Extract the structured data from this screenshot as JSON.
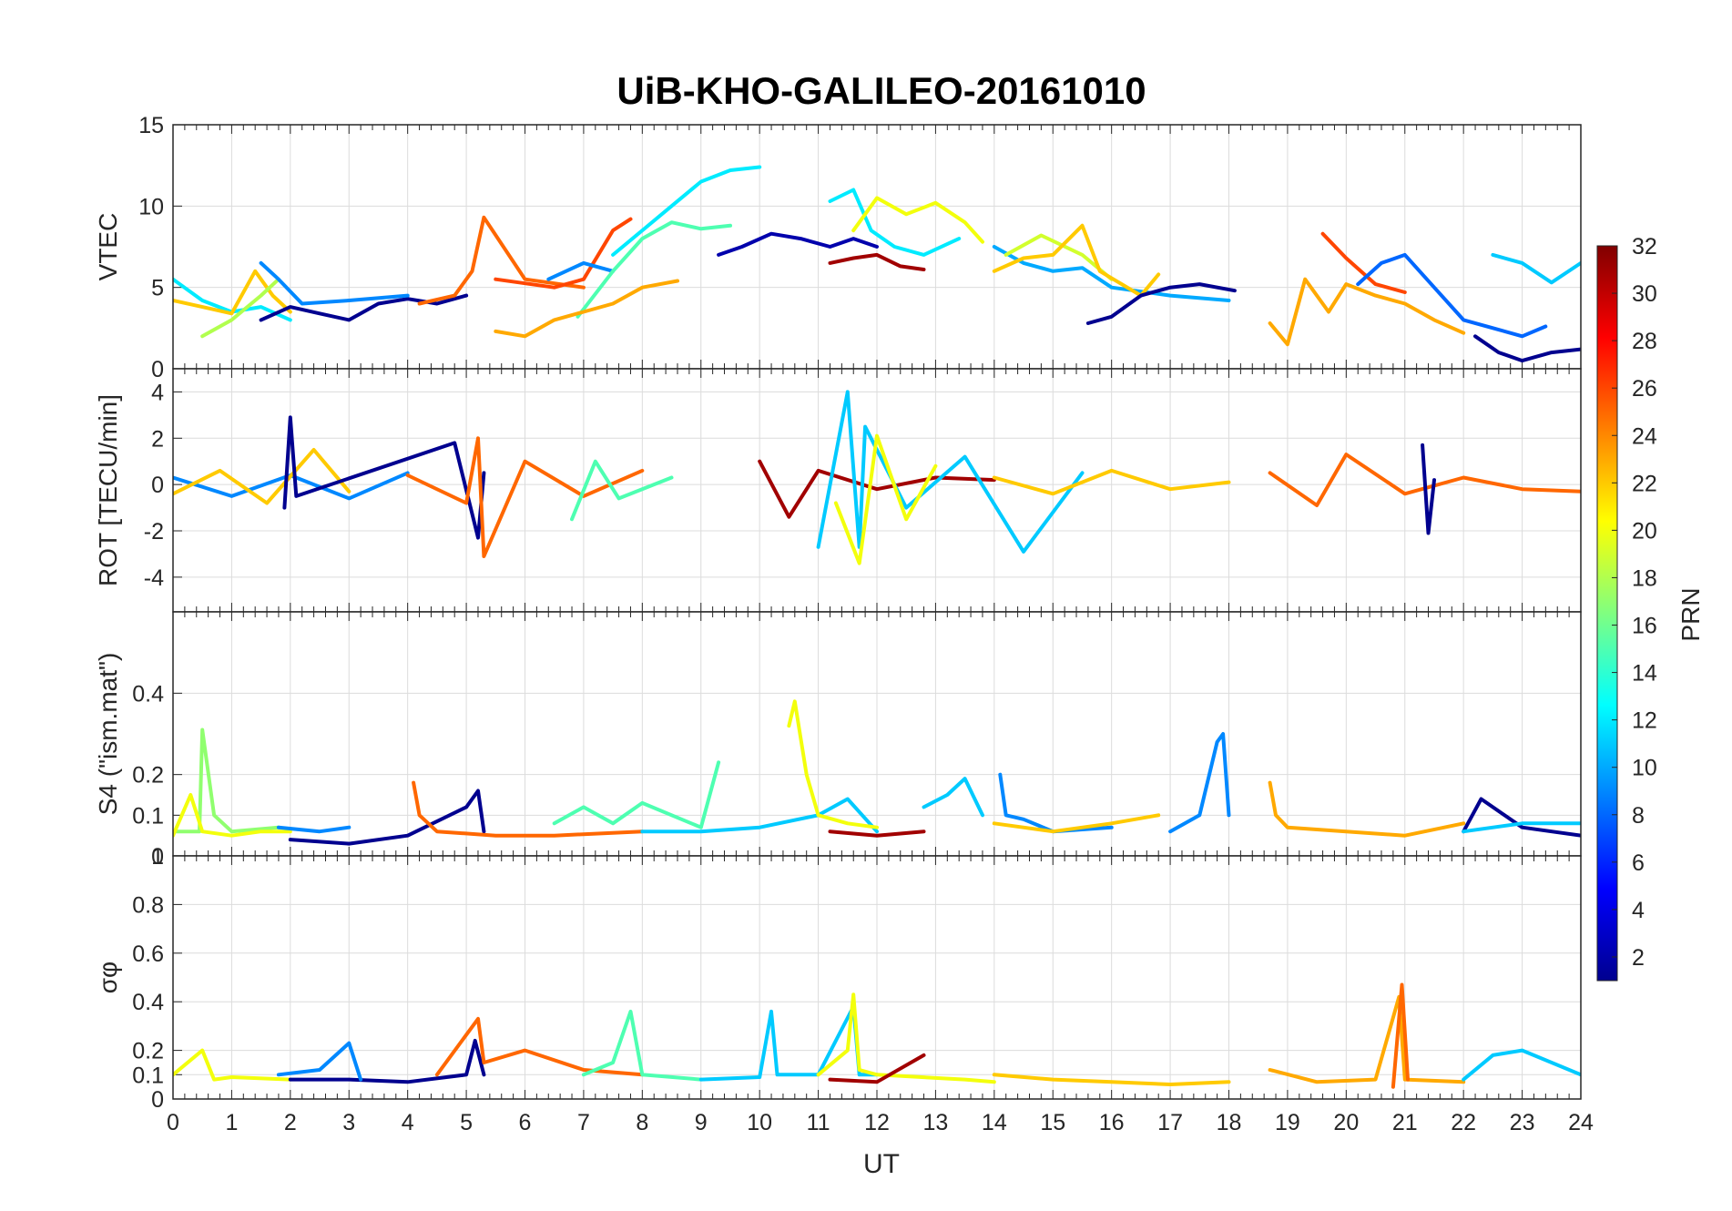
{
  "figure": {
    "title": "UiB-KHO-GALILEO-20161010",
    "xlabel": "UT"
  },
  "colorbar": {
    "label": "PRN",
    "min": 1,
    "max": 32,
    "ticks": [
      "2",
      "4",
      "6",
      "8",
      "10",
      "12",
      "14",
      "16",
      "18",
      "20",
      "22",
      "24",
      "26",
      "28",
      "30",
      "32"
    ],
    "colormap": "jet",
    "colors": [
      "#00008f",
      "#0000ff",
      "#0080ff",
      "#00ffff",
      "#80ff80",
      "#ffff00",
      "#ff8000",
      "#ff0000",
      "#800000"
    ]
  },
  "chart_data": [
    {
      "type": "line",
      "ylabel": "VTEC",
      "xlim": [
        0,
        24
      ],
      "ylim": [
        0,
        15
      ],
      "yticks": [
        "0",
        "5",
        "10",
        "15"
      ],
      "grid": true,
      "series": [
        {
          "prn": 12,
          "x": [
            0,
            0.5,
            1,
            1.5,
            2
          ],
          "y": [
            5.5,
            4.2,
            3.5,
            3.8,
            3.0
          ]
        },
        {
          "prn": 22,
          "x": [
            0,
            0.5,
            1,
            1.4,
            1.7,
            2
          ],
          "y": [
            4.2,
            3.8,
            3.4,
            6.0,
            4.5,
            3.5
          ]
        },
        {
          "prn": 18,
          "x": [
            0.5,
            1,
            1.5,
            1.8
          ],
          "y": [
            2.0,
            3.0,
            4.5,
            5.5
          ]
        },
        {
          "prn": 1,
          "x": [
            1.5,
            2,
            2.5,
            3,
            3.5,
            4,
            4.5,
            5
          ],
          "y": [
            3.0,
            3.8,
            3.4,
            3.0,
            4.0,
            4.3,
            4.0,
            4.5
          ]
        },
        {
          "prn": 9,
          "x": [
            1.5,
            1.8,
            2.2,
            3,
            4
          ],
          "y": [
            6.5,
            5.5,
            4.0,
            4.2,
            4.5
          ]
        },
        {
          "prn": 25,
          "x": [
            4.2,
            4.8,
            5.1,
            5.3,
            6,
            7
          ],
          "y": [
            4.0,
            4.5,
            6.0,
            9.3,
            5.5,
            5.0
          ]
        },
        {
          "prn": 26,
          "x": [
            5.5,
            6.5,
            7,
            7.5,
            7.8
          ],
          "y": [
            5.5,
            5.0,
            5.5,
            8.5,
            9.2
          ]
        },
        {
          "prn": 9,
          "x": [
            6.4,
            7,
            7.5
          ],
          "y": [
            5.5,
            6.5,
            6.0
          ]
        },
        {
          "prn": 15,
          "x": [
            6.9,
            7.5,
            8,
            8.5,
            9,
            9.5
          ],
          "y": [
            3.2,
            6.0,
            8.0,
            9.0,
            8.6,
            8.8
          ]
        },
        {
          "prn": 23,
          "x": [
            5.5,
            6,
            6.5,
            7,
            7.5,
            8,
            8.6
          ],
          "y": [
            2.3,
            2.0,
            3.0,
            3.5,
            4.0,
            5.0,
            5.4
          ]
        },
        {
          "prn": 12,
          "x": [
            7.5,
            8,
            8.5,
            9,
            9.5,
            10
          ],
          "y": [
            7.0,
            8.5,
            10.0,
            11.5,
            12.2,
            12.4
          ]
        },
        {
          "prn": 2,
          "x": [
            9.3,
            9.7,
            10.2,
            10.7,
            11.2,
            11.6,
            12
          ],
          "y": [
            7.0,
            7.5,
            8.3,
            8.0,
            7.5,
            8.0,
            7.5
          ]
        },
        {
          "prn": 31,
          "x": [
            11.2,
            11.6,
            12,
            12.4,
            12.8
          ],
          "y": [
            6.5,
            6.8,
            7.0,
            6.3,
            6.1
          ]
        },
        {
          "prn": 12,
          "x": [
            11.2,
            11.6,
            11.9,
            12.3,
            12.8,
            13.4
          ],
          "y": [
            10.3,
            11.0,
            8.5,
            7.5,
            7.0,
            8.0
          ]
        },
        {
          "prn": 20,
          "x": [
            11.6,
            12,
            12.5,
            13,
            13.5,
            13.8
          ],
          "y": [
            8.5,
            10.5,
            9.5,
            10.2,
            9.0,
            7.8
          ]
        },
        {
          "prn": 10,
          "x": [
            14,
            14.5,
            15,
            15.5,
            16,
            17,
            18
          ],
          "y": [
            7.5,
            6.5,
            6.0,
            6.2,
            5.0,
            4.5,
            4.2
          ]
        },
        {
          "prn": 19,
          "x": [
            14.2,
            14.8,
            15.5,
            16
          ],
          "y": [
            7.0,
            8.2,
            7.0,
            5.5
          ]
        },
        {
          "prn": 22,
          "x": [
            14,
            14.5,
            15,
            15.5,
            15.8,
            16.5,
            16.8
          ],
          "y": [
            6.0,
            6.8,
            7.0,
            8.8,
            6.0,
            4.5,
            5.8
          ]
        },
        {
          "prn": 1,
          "x": [
            15.6,
            16,
            16.5,
            17,
            17.5,
            18.1
          ],
          "y": [
            2.8,
            3.2,
            4.5,
            5.0,
            5.2,
            4.8
          ]
        },
        {
          "prn": 23,
          "x": [
            18.7,
            19,
            19.3,
            19.7,
            20,
            20.5,
            21,
            21.5,
            22
          ],
          "y": [
            2.8,
            1.5,
            5.5,
            3.5,
            5.2,
            4.5,
            4.0,
            3.0,
            2.2
          ]
        },
        {
          "prn": 26,
          "x": [
            19.6,
            20,
            20.5,
            21
          ],
          "y": [
            8.3,
            6.8,
            5.2,
            4.7
          ]
        },
        {
          "prn": 8,
          "x": [
            20.2,
            20.6,
            21,
            21.5,
            22,
            22.5,
            23,
            23.4
          ],
          "y": [
            5.2,
            6.5,
            7.0,
            5.0,
            3.0,
            2.5,
            2.0,
            2.6
          ]
        },
        {
          "prn": 1,
          "x": [
            22.2,
            22.6,
            23,
            23.5,
            24
          ],
          "y": [
            2.0,
            1.0,
            0.5,
            1.0,
            1.2
          ]
        },
        {
          "prn": 11,
          "x": [
            22.5,
            23,
            23.5,
            24
          ],
          "y": [
            7.0,
            6.5,
            5.3,
            6.5
          ]
        }
      ]
    },
    {
      "type": "line",
      "ylabel": "ROT [TECU/min]",
      "xlim": [
        0,
        24
      ],
      "ylim": [
        -5.5,
        5
      ],
      "yticks": [
        "-4",
        "-2",
        "0",
        "2",
        "4"
      ],
      "grid": true,
      "series": [
        {
          "prn": 9,
          "x": [
            0,
            1,
            2,
            3,
            4
          ],
          "y": [
            0.3,
            -0.5,
            0.4,
            -0.6,
            0.5
          ]
        },
        {
          "prn": 22,
          "x": [
            0,
            0.8,
            1.6,
            2.4,
            3
          ],
          "y": [
            -0.4,
            0.6,
            -0.8,
            1.5,
            -0.3
          ]
        },
        {
          "prn": 1,
          "x": [
            1.9,
            2,
            2.1,
            4.8,
            5.2,
            5.3
          ],
          "y": [
            -1.0,
            2.9,
            -0.5,
            1.8,
            -2.3,
            0.5
          ]
        },
        {
          "prn": 25,
          "x": [
            4,
            5,
            5.2,
            5.3,
            6,
            7,
            8
          ],
          "y": [
            0.4,
            -0.8,
            2.0,
            -3.1,
            1.0,
            -0.5,
            0.6
          ]
        },
        {
          "prn": 15,
          "x": [
            6.8,
            7.2,
            7.6,
            8.5
          ],
          "y": [
            -1.5,
            1.0,
            -0.6,
            0.3
          ]
        },
        {
          "prn": 31,
          "x": [
            10,
            10.5,
            11,
            12,
            13,
            14
          ],
          "y": [
            1.0,
            -1.4,
            0.6,
            -0.2,
            0.3,
            0.2
          ]
        },
        {
          "prn": 11,
          "x": [
            11,
            11.5,
            11.7,
            11.8,
            12.5,
            13.5,
            14.5,
            15.5
          ],
          "y": [
            -2.7,
            4.0,
            -2.7,
            2.5,
            -1.0,
            1.2,
            -2.9,
            0.5
          ]
        },
        {
          "prn": 20,
          "x": [
            11.3,
            11.7,
            12,
            12.5,
            13
          ],
          "y": [
            -0.8,
            -3.4,
            2.1,
            -1.5,
            0.8
          ]
        },
        {
          "prn": 22,
          "x": [
            14,
            15,
            16,
            17,
            18
          ],
          "y": [
            0.3,
            -0.4,
            0.6,
            -0.2,
            0.1
          ]
        },
        {
          "prn": 25,
          "x": [
            18.7,
            19.5,
            20,
            21,
            22,
            23,
            24
          ],
          "y": [
            0.5,
            -0.9,
            1.3,
            -0.4,
            0.3,
            -0.2,
            -0.3
          ]
        },
        {
          "prn": 1,
          "x": [
            21.3,
            21.4,
            21.5
          ],
          "y": [
            1.7,
            -2.1,
            0.2
          ]
        }
      ]
    },
    {
      "type": "line",
      "ylabel": "S4 (\"ism.mat\")",
      "xlim": [
        0,
        24
      ],
      "ylim": [
        0,
        0.6
      ],
      "yticks": [
        "0",
        "0.1",
        "0.2",
        "0.4"
      ],
      "grid": true,
      "series": [
        {
          "prn": 17,
          "x": [
            0,
            0.45,
            0.5,
            0.7,
            1,
            1.8
          ],
          "y": [
            0.06,
            0.06,
            0.31,
            0.1,
            0.06,
            0.07
          ]
        },
        {
          "prn": 20,
          "x": [
            0,
            0.3,
            0.5,
            1,
            1.5,
            2
          ],
          "y": [
            0.05,
            0.15,
            0.06,
            0.05,
            0.06,
            0.06
          ]
        },
        {
          "prn": 9,
          "x": [
            1.8,
            2.5,
            3
          ],
          "y": [
            0.07,
            0.06,
            0.07
          ]
        },
        {
          "prn": 1,
          "x": [
            2,
            3,
            4,
            5,
            5.2,
            5.3
          ],
          "y": [
            0.04,
            0.03,
            0.05,
            0.12,
            0.16,
            0.06
          ]
        },
        {
          "prn": 25,
          "x": [
            4.1,
            4.2,
            4.5,
            5.5,
            6.5,
            8
          ],
          "y": [
            0.18,
            0.1,
            0.06,
            0.05,
            0.05,
            0.06
          ]
        },
        {
          "prn": 15,
          "x": [
            6.5,
            7,
            7.5,
            8,
            9,
            9.3
          ],
          "y": [
            0.08,
            0.12,
            0.08,
            0.13,
            0.07,
            0.23
          ]
        },
        {
          "prn": 11,
          "x": [
            8,
            9,
            10,
            11,
            11.5,
            12
          ],
          "y": [
            0.06,
            0.06,
            0.07,
            0.1,
            0.14,
            0.06
          ]
        },
        {
          "prn": 20,
          "x": [
            10.5,
            10.6,
            10.8,
            11,
            11.5,
            12
          ],
          "y": [
            0.32,
            0.38,
            0.2,
            0.1,
            0.08,
            0.07
          ]
        },
        {
          "prn": 31,
          "x": [
            11.2,
            12,
            12.8
          ],
          "y": [
            0.06,
            0.05,
            0.06
          ]
        },
        {
          "prn": 11,
          "x": [
            12.8,
            13.2,
            13.5,
            13.8
          ],
          "y": [
            0.12,
            0.15,
            0.19,
            0.1
          ]
        },
        {
          "prn": 9,
          "x": [
            14.1,
            14.2,
            14.5,
            15,
            16
          ],
          "y": [
            0.2,
            0.1,
            0.09,
            0.06,
            0.07
          ]
        },
        {
          "prn": 22,
          "x": [
            14,
            15,
            16,
            16.8
          ],
          "y": [
            0.08,
            0.06,
            0.08,
            0.1
          ]
        },
        {
          "prn": 9,
          "x": [
            17,
            17.5,
            17.8,
            17.9,
            18
          ],
          "y": [
            0.06,
            0.1,
            0.28,
            0.3,
            0.1
          ]
        },
        {
          "prn": 23,
          "x": [
            18.7,
            18.8,
            19,
            20,
            21,
            22
          ],
          "y": [
            0.18,
            0.1,
            0.07,
            0.06,
            0.05,
            0.08
          ]
        },
        {
          "prn": 1,
          "x": [
            22,
            22.3,
            23,
            24
          ],
          "y": [
            0.06,
            0.14,
            0.07,
            0.05
          ]
        },
        {
          "prn": 11,
          "x": [
            22,
            23,
            24
          ],
          "y": [
            0.06,
            0.08,
            0.08
          ]
        }
      ]
    },
    {
      "type": "line",
      "ylabel": "σφ",
      "xlim": [
        0,
        24
      ],
      "ylim": [
        0,
        1
      ],
      "yticks": [
        "0",
        "0.1",
        "0.2",
        "0.4",
        "0.6",
        "0.8",
        "1"
      ],
      "grid": true,
      "series": [
        {
          "prn": 20,
          "x": [
            0,
            0.5,
            0.7,
            1,
            2
          ],
          "y": [
            0.1,
            0.2,
            0.08,
            0.09,
            0.08
          ]
        },
        {
          "prn": 1,
          "x": [
            2,
            3,
            4,
            5,
            5.15,
            5.3
          ],
          "y": [
            0.08,
            0.08,
            0.07,
            0.1,
            0.24,
            0.1
          ]
        },
        {
          "prn": 9,
          "x": [
            1.8,
            2.5,
            3,
            3.2
          ],
          "y": [
            0.1,
            0.12,
            0.23,
            0.08
          ]
        },
        {
          "prn": 25,
          "x": [
            4.5,
            5.2,
            5.3,
            6,
            7,
            8
          ],
          "y": [
            0.1,
            0.33,
            0.15,
            0.2,
            0.12,
            0.1
          ]
        },
        {
          "prn": 15,
          "x": [
            7,
            7.5,
            7.8,
            8,
            9
          ],
          "y": [
            0.1,
            0.15,
            0.36,
            0.1,
            0.08
          ]
        },
        {
          "prn": 11,
          "x": [
            9,
            10,
            10.2,
            10.3,
            11,
            11.6,
            11.7,
            12
          ],
          "y": [
            0.08,
            0.09,
            0.36,
            0.1,
            0.1,
            0.38,
            0.1,
            0.1
          ]
        },
        {
          "prn": 20,
          "x": [
            11,
            11.5,
            11.6,
            11.7,
            12,
            13.5,
            14
          ],
          "y": [
            0.1,
            0.2,
            0.43,
            0.12,
            0.1,
            0.08,
            0.07
          ]
        },
        {
          "prn": 31,
          "x": [
            11.2,
            12,
            12.8
          ],
          "y": [
            0.08,
            0.07,
            0.18
          ]
        },
        {
          "prn": 22,
          "x": [
            14,
            15,
            16,
            17,
            18
          ],
          "y": [
            0.1,
            0.08,
            0.07,
            0.06,
            0.07
          ]
        },
        {
          "prn": 23,
          "x": [
            18.7,
            19.5,
            20.5,
            20.9,
            21,
            22
          ],
          "y": [
            0.12,
            0.07,
            0.08,
            0.42,
            0.08,
            0.07
          ]
        },
        {
          "prn": 25,
          "x": [
            20.8,
            20.95,
            21.05
          ],
          "y": [
            0.05,
            0.47,
            0.08
          ]
        },
        {
          "prn": 11,
          "x": [
            22,
            22.5,
            23,
            24
          ],
          "y": [
            0.08,
            0.18,
            0.2,
            0.1
          ]
        }
      ]
    }
  ]
}
